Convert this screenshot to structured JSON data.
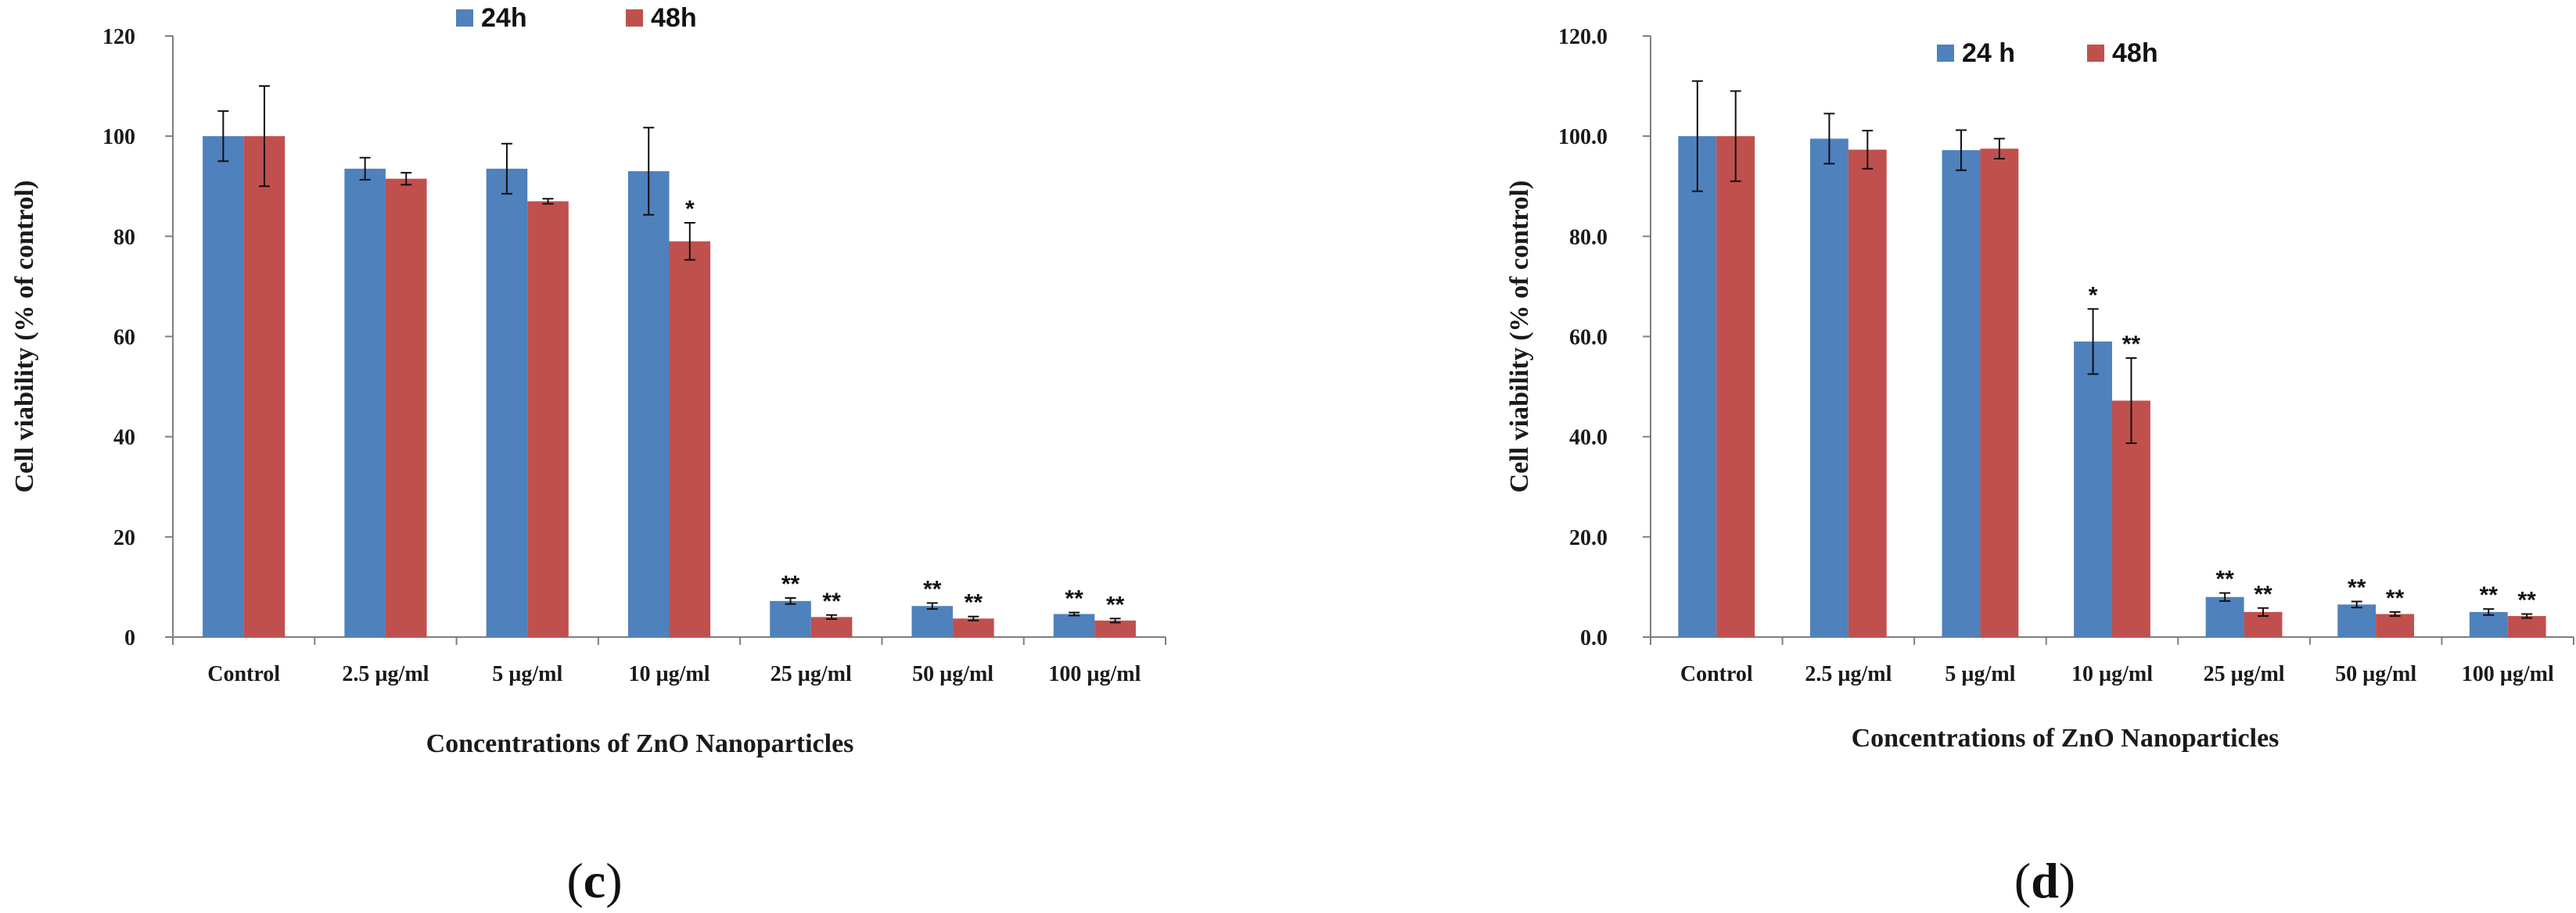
{
  "chart_data": [
    {
      "type": "bar",
      "panel_label_open": "(",
      "panel_label_letter": "c",
      "panel_label_close": ")",
      "categories": [
        "Control",
        "2.5 µg/ml",
        "5 µg/ml",
        "10 µg/ml",
        "25 µg/ml",
        "50 µg/ml",
        "100 µg/ml"
      ],
      "series": [
        {
          "name": "24h",
          "color": "#4f81bd",
          "values": [
            100,
            93.5,
            93.5,
            93,
            7.2,
            6.2,
            4.6
          ],
          "errors": [
            5,
            2.2,
            5,
            8.7,
            0.6,
            0.6,
            0.3
          ],
          "significance": [
            "",
            "",
            "",
            "",
            "**",
            "**",
            "**"
          ]
        },
        {
          "name": "48h",
          "color": "#c0504d",
          "values": [
            100,
            91.5,
            87,
            79,
            4,
            3.7,
            3.3
          ],
          "errors": [
            10,
            1.2,
            0.5,
            3.7,
            0.4,
            0.4,
            0.4
          ],
          "significance": [
            "",
            "",
            "",
            "*",
            "**",
            "**",
            "**"
          ]
        }
      ],
      "ylabel": "Cell viability (%  of control)",
      "xlabel": "Concentrations of ZnO Nanoparticles",
      "ylim": [
        0,
        120
      ],
      "yticks": [
        0,
        20,
        40,
        60,
        80,
        100,
        120
      ],
      "ytick_labels": [
        "0",
        "20",
        "40",
        "60",
        "80",
        "100",
        "120"
      ],
      "grid": false,
      "legend_position": "top-center"
    },
    {
      "type": "bar",
      "panel_label_open": "(",
      "panel_label_letter": "d",
      "panel_label_close": ")",
      "categories": [
        "Control",
        "2.5 µg/ml",
        "5 µg/ml",
        "10 µg/ml",
        "25 µg/ml",
        "50 µg/ml",
        "100 µg/ml"
      ],
      "series": [
        {
          "name": "24 h",
          "color": "#4f81bd",
          "values": [
            100,
            99.5,
            97.2,
            59,
            8,
            6.5,
            5
          ],
          "errors": [
            11,
            5,
            4,
            6.5,
            0.8,
            0.6,
            0.6
          ],
          "significance": [
            "",
            "",
            "",
            "*",
            "**",
            "**",
            "**"
          ]
        },
        {
          "name": "48h",
          "color": "#c0504d",
          "values": [
            100,
            97.3,
            97.5,
            47.2,
            5,
            4.6,
            4.2
          ],
          "errors": [
            9,
            3.8,
            2,
            8.5,
            0.8,
            0.4,
            0.4
          ],
          "significance": [
            "",
            "",
            "",
            "**",
            "**",
            "**",
            "**"
          ]
        }
      ],
      "ylabel": "Cell viability (% of control)",
      "xlabel": "Concentrations of ZnO Nanoparticles",
      "ylim": [
        0,
        120
      ],
      "yticks": [
        0,
        20,
        40,
        60,
        80,
        100,
        120
      ],
      "ytick_labels": [
        "0.0",
        "20.0",
        "40.0",
        "60.0",
        "80.0",
        "100.0",
        "120.0"
      ],
      "grid": false,
      "legend_position": "top-center"
    }
  ]
}
